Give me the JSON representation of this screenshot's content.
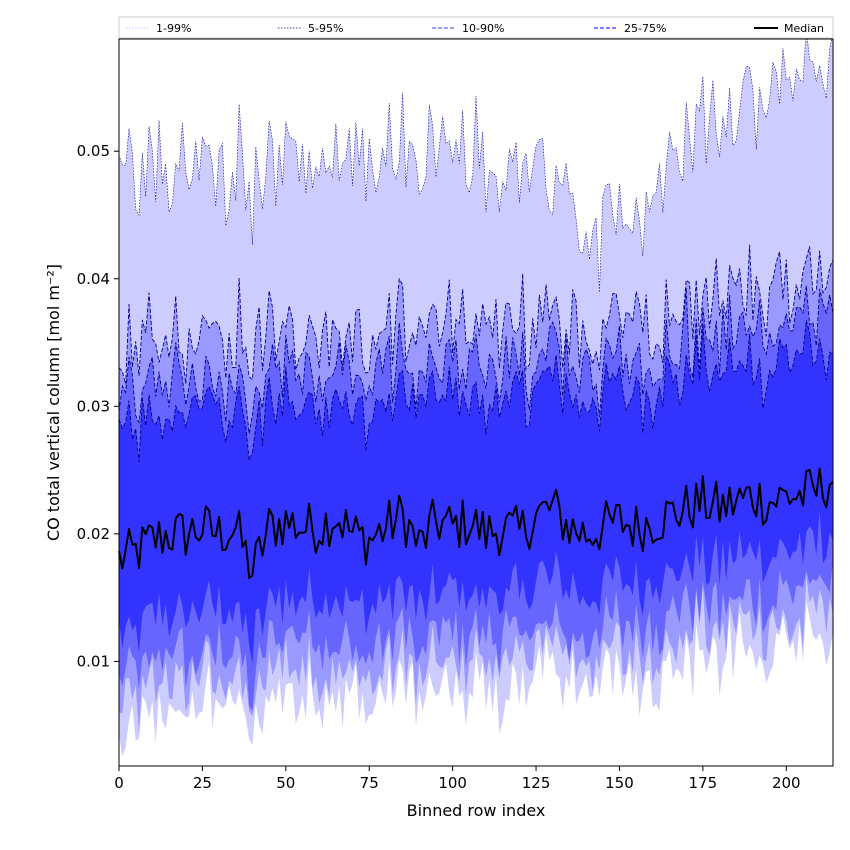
{
  "chart_data": {
    "type": "area",
    "title": "",
    "xlabel": "Binned row index",
    "ylabel": "CO total vertical column [mol m⁻²]",
    "xlim": [
      0,
      214
    ],
    "ylim": [
      0.0018,
      0.0588
    ],
    "x_ticks": [
      0,
      25,
      50,
      75,
      100,
      125,
      150,
      175,
      200
    ],
    "y_ticks": [
      0.01,
      0.02,
      0.03,
      0.04,
      0.05
    ],
    "x_tick_labels": [
      "0",
      "25",
      "50",
      "75",
      "100",
      "125",
      "150",
      "175",
      "200"
    ],
    "y_tick_labels": [
      "0.01",
      "0.02",
      "0.03",
      "0.04",
      "0.05"
    ],
    "grid": false,
    "legend_position": "top",
    "legend": [
      "1-99%",
      "5-95%",
      "10-90%",
      "25-75%",
      "Median"
    ],
    "colors": {
      "band_1_99": "#ccccff",
      "band_5_95": "#9999ff",
      "band_10_90": "#6666ff",
      "band_25_75": "#3333ff",
      "median_line": "#000000",
      "edge_line": "#00008b"
    },
    "x_step": 1,
    "x_start": 0,
    "series": [
      {
        "name": "Median",
        "key": "median",
        "description": "sampled every 5 rows",
        "x": [
          0,
          5,
          10,
          15,
          20,
          25,
          30,
          35,
          40,
          45,
          50,
          55,
          60,
          65,
          70,
          75,
          80,
          85,
          90,
          95,
          100,
          105,
          110,
          115,
          120,
          125,
          130,
          135,
          140,
          145,
          150,
          155,
          160,
          165,
          170,
          175,
          180,
          185,
          190,
          195,
          200,
          205,
          210,
          214
        ],
        "values": [
          0.018,
          0.0185,
          0.0195,
          0.02,
          0.02,
          0.0205,
          0.02,
          0.0205,
          0.017,
          0.0205,
          0.021,
          0.0205,
          0.0205,
          0.0215,
          0.02,
          0.0195,
          0.0205,
          0.0215,
          0.019,
          0.021,
          0.0205,
          0.021,
          0.02,
          0.0205,
          0.02,
          0.0215,
          0.022,
          0.0205,
          0.02,
          0.0205,
          0.021,
          0.0205,
          0.021,
          0.0215,
          0.022,
          0.0225,
          0.022,
          0.0225,
          0.023,
          0.0225,
          0.023,
          0.023,
          0.0235,
          0.0245
        ]
      },
      {
        "name": "25-75%",
        "key": "p25_75",
        "lower_mean": 0.0148,
        "upper_mean": 0.03
      },
      {
        "name": "10-90%",
        "key": "p10_90",
        "lower_mean": 0.0115,
        "upper_mean": 0.0325
      },
      {
        "name": "5-95%",
        "key": "p5_95",
        "lower_mean": 0.0095,
        "upper_mean": 0.0355
      },
      {
        "name": "1-99%",
        "key": "p1_99",
        "lower_mean": 0.0075,
        "upper_mean": 0.049
      }
    ]
  }
}
